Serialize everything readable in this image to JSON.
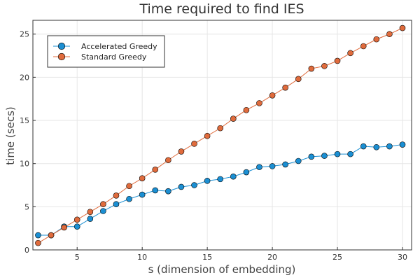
{
  "chart_data": {
    "type": "line",
    "title": "Time required to find IES",
    "xlabel": "s (dimension of embedding)",
    "ylabel": "time (secs)",
    "xlim": [
      1.6,
      30.7
    ],
    "ylim": [
      0,
      26.6
    ],
    "xticks": [
      5,
      10,
      15,
      20,
      25,
      30
    ],
    "yticks": [
      0,
      5,
      10,
      15,
      20,
      25
    ],
    "grid": true,
    "legend_position": "top-left",
    "x": [
      2,
      3,
      4,
      5,
      6,
      7,
      8,
      9,
      10,
      11,
      12,
      13,
      14,
      15,
      16,
      17,
      18,
      19,
      20,
      21,
      22,
      23,
      24,
      25,
      26,
      27,
      28,
      29,
      30
    ],
    "series": [
      {
        "name": "Accelerated Greedy",
        "color": "#1b8fd3",
        "values": [
          1.7,
          1.7,
          2.7,
          2.7,
          3.6,
          4.5,
          5.3,
          5.9,
          6.4,
          6.9,
          6.8,
          7.3,
          7.5,
          8.0,
          8.2,
          8.5,
          9.0,
          9.6,
          9.7,
          9.9,
          10.3,
          10.8,
          10.9,
          11.1,
          11.1,
          12.0,
          11.9,
          12.0,
          12.2
        ]
      },
      {
        "name": "Standard Greedy",
        "color": "#e06b3c",
        "values": [
          0.8,
          1.7,
          2.6,
          3.5,
          4.4,
          5.3,
          6.3,
          7.4,
          8.3,
          9.3,
          10.4,
          11.4,
          12.3,
          13.2,
          14.1,
          15.2,
          16.2,
          17.0,
          17.9,
          18.8,
          19.8,
          21.0,
          21.3,
          21.9,
          22.8,
          23.6,
          24.4,
          25.0,
          25.7
        ]
      }
    ]
  }
}
